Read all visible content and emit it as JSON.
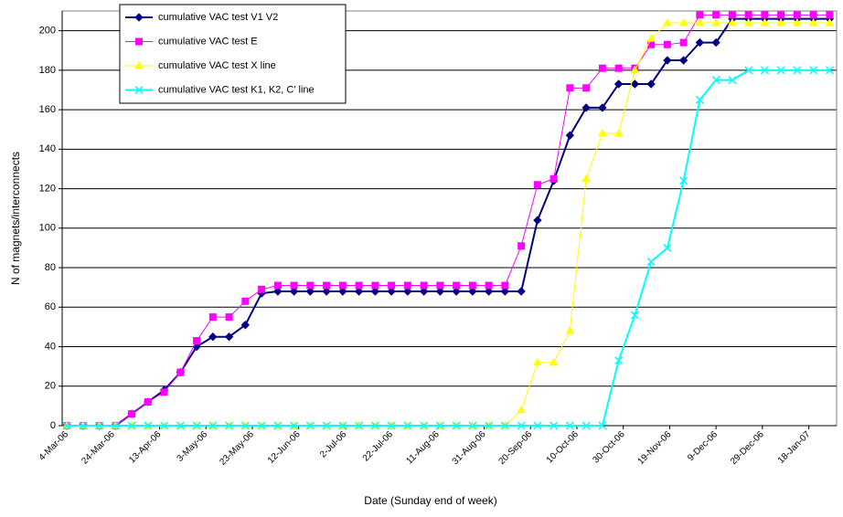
{
  "chart_data": {
    "type": "line",
    "x_label": "Date (Sunday end of week)",
    "y_label": "N of magnets/interconnects",
    "x": [
      "2006-03-04",
      "2006-03-11",
      "2006-03-18",
      "2006-03-25",
      "2006-04-01",
      "2006-04-08",
      "2006-04-15",
      "2006-04-22",
      "2006-04-29",
      "2006-05-06",
      "2006-05-13",
      "2006-05-20",
      "2006-05-27",
      "2006-06-03",
      "2006-06-10",
      "2006-06-17",
      "2006-06-24",
      "2006-07-01",
      "2006-07-08",
      "2006-07-15",
      "2006-07-22",
      "2006-07-29",
      "2006-08-05",
      "2006-08-12",
      "2006-08-19",
      "2006-08-26",
      "2006-09-02",
      "2006-09-09",
      "2006-09-16",
      "2006-09-23",
      "2006-09-30",
      "2006-10-07",
      "2006-10-14",
      "2006-10-21",
      "2006-10-28",
      "2006-11-04",
      "2006-11-11",
      "2006-11-18",
      "2006-11-25",
      "2006-12-02",
      "2006-12-09",
      "2006-12-16",
      "2006-12-23",
      "2006-12-30",
      "2007-01-06",
      "2007-01-13",
      "2007-01-20",
      "2007-01-27"
    ],
    "series": [
      {
        "name": "cumulative VAC test V1 V2",
        "color": "#000080",
        "marker": "diamond",
        "values": [
          0,
          0,
          0,
          0,
          6,
          12,
          18,
          27,
          40,
          45,
          45,
          51,
          67,
          68,
          68,
          68,
          68,
          68,
          68,
          68,
          68,
          68,
          68,
          68,
          68,
          68,
          68,
          68,
          68,
          104,
          124,
          147,
          161,
          161,
          173,
          173,
          173,
          185,
          185,
          194,
          194,
          206,
          206,
          206,
          206,
          206,
          206,
          206
        ]
      },
      {
        "name": "cumulative VAC test E",
        "color": "#ff00ff",
        "marker": "square",
        "values": [
          0,
          0,
          0,
          0,
          6,
          12,
          17,
          27,
          43,
          55,
          55,
          63,
          69,
          71,
          71,
          71,
          71,
          71,
          71,
          71,
          71,
          71,
          71,
          71,
          71,
          71,
          71,
          71,
          91,
          122,
          125,
          171,
          171,
          181,
          181,
          181,
          193,
          193,
          194,
          208,
          208,
          208,
          208,
          208,
          208,
          208,
          208,
          208
        ]
      },
      {
        "name": "cumulative VAC test X line",
        "color": "#ffff00",
        "marker": "triangle",
        "values": [
          0,
          0,
          0,
          0,
          0,
          0,
          0,
          0,
          0,
          0,
          0,
          0,
          0,
          0,
          0,
          0,
          0,
          0,
          0,
          0,
          0,
          0,
          0,
          0,
          0,
          0,
          0,
          0,
          8,
          32,
          32,
          48,
          125,
          148,
          148,
          180,
          196,
          204,
          204,
          204,
          204,
          204,
          204,
          204,
          204,
          204,
          204,
          204
        ]
      },
      {
        "name": "cumulative VAC test K1, K2, C' line",
        "color": "#00ffff",
        "marker": "x",
        "values": [
          0,
          0,
          0,
          0,
          0,
          0,
          0,
          0,
          0,
          0,
          0,
          0,
          0,
          0,
          0,
          0,
          0,
          0,
          0,
          0,
          0,
          0,
          0,
          0,
          0,
          0,
          0,
          0,
          0,
          0,
          0,
          0,
          0,
          0,
          33,
          56,
          83,
          90,
          124,
          165,
          175,
          175,
          180,
          180,
          180,
          180,
          180,
          180
        ]
      }
    ],
    "xlim": [
      "2006-03-02",
      "2007-01-30"
    ],
    "xticks": [
      {
        "value": "2006-03-04",
        "label": "4-Mar-06"
      },
      {
        "value": "2006-03-24",
        "label": "24-Mar-06"
      },
      {
        "value": "2006-04-13",
        "label": "13-Apr-06"
      },
      {
        "value": "2006-05-03",
        "label": "3-May-06"
      },
      {
        "value": "2006-05-23",
        "label": "23-May-06"
      },
      {
        "value": "2006-06-12",
        "label": "12-Jun-06"
      },
      {
        "value": "2006-07-02",
        "label": "2-Jul-06"
      },
      {
        "value": "2006-07-22",
        "label": "22-Jul-06"
      },
      {
        "value": "2006-08-11",
        "label": "11-Aug-06"
      },
      {
        "value": "2006-08-31",
        "label": "31-Aug-06"
      },
      {
        "value": "2006-09-20",
        "label": "20-Sep-06"
      },
      {
        "value": "2006-10-10",
        "label": "10-Oct-06"
      },
      {
        "value": "2006-10-30",
        "label": "30-Oct-06"
      },
      {
        "value": "2006-11-19",
        "label": "19-Nov-06"
      },
      {
        "value": "2006-12-09",
        "label": "9-Dec-06"
      },
      {
        "value": "2006-12-29",
        "label": "29-Dec-06"
      },
      {
        "value": "2007-01-18",
        "label": "18-Jan-07"
      }
    ],
    "ylim": [
      0,
      210
    ],
    "yticks": [
      0,
      20,
      40,
      60,
      80,
      100,
      120,
      140,
      160,
      180,
      200
    ],
    "grid": true,
    "legend": "upper-left"
  }
}
